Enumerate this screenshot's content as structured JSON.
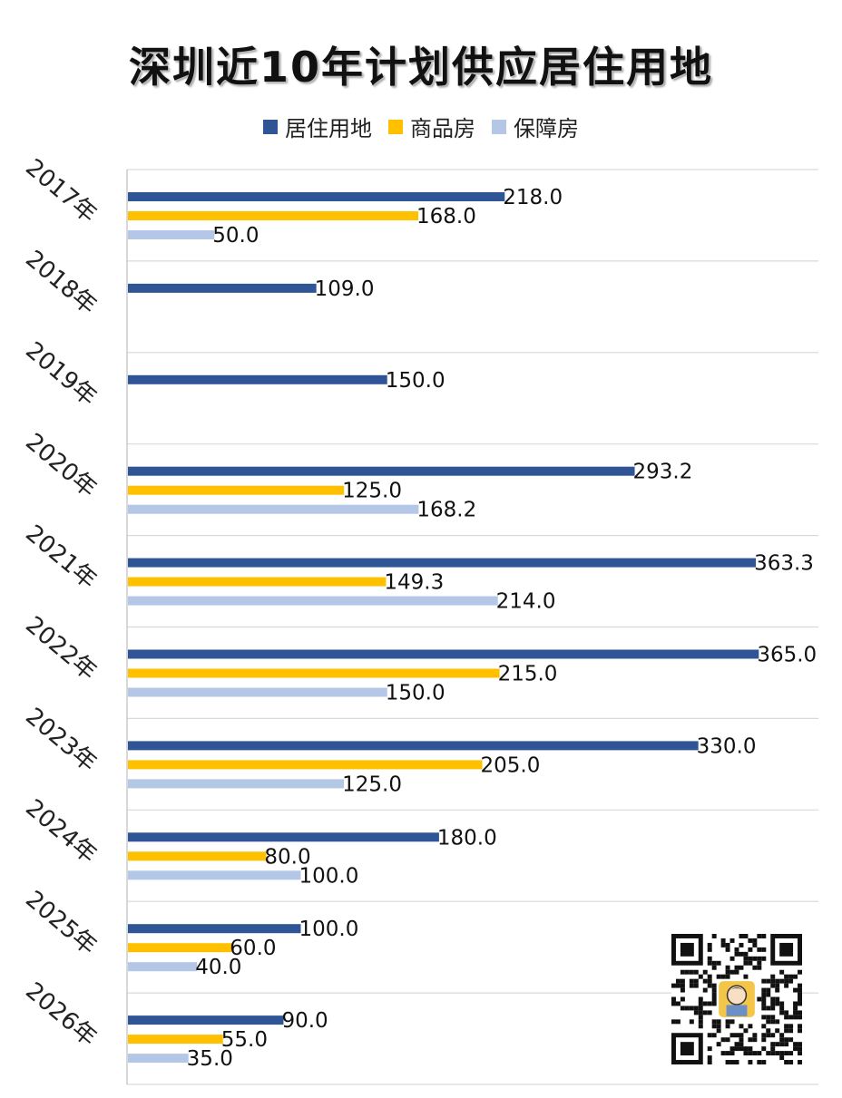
{
  "chart_data": {
    "type": "bar",
    "orientation": "horizontal",
    "title": "深圳近10年计划供应居住用地",
    "categories": [
      "2017年",
      "2018年",
      "2019年",
      "2020年",
      "2021年",
      "2022年",
      "2023年",
      "2024年",
      "2025年",
      "2026年"
    ],
    "series": [
      {
        "name": "居住用地",
        "color": "#2f5597",
        "values": [
          218.0,
          109.0,
          150.0,
          293.2,
          363.3,
          365.0,
          330.0,
          180.0,
          100.0,
          90.0
        ]
      },
      {
        "name": "商品房",
        "color": "#ffc000",
        "values": [
          168.0,
          null,
          null,
          125.0,
          149.3,
          215.0,
          205.0,
          80.0,
          60.0,
          55.0
        ]
      },
      {
        "name": "保障房",
        "color": "#b4c7e7",
        "values": [
          50.0,
          null,
          null,
          168.2,
          214.0,
          150.0,
          125.0,
          100.0,
          40.0,
          35.0
        ]
      }
    ],
    "value_labels": {
      "居住用地": [
        "218.0",
        "109.0",
        "150.0",
        "293.2",
        "363.3",
        "365.0",
        "330.0",
        "180.0",
        "100.0",
        "90.0"
      ],
      "商品房": [
        "168.0",
        null,
        null,
        "125.0",
        "149.3",
        "215.0",
        "205.0",
        "80.0",
        "60.0",
        "55.0"
      ],
      "保障房": [
        "50.0",
        null,
        null,
        "168.2",
        "214.0",
        "150.0",
        "125.0",
        "100.0",
        "40.0",
        "35.0"
      ]
    },
    "xlim": [
      0,
      400
    ],
    "grid": true,
    "legend_position": "top-center",
    "axis_labels_visible": false
  },
  "qr_code": {
    "icon": "qr-code-icon"
  }
}
